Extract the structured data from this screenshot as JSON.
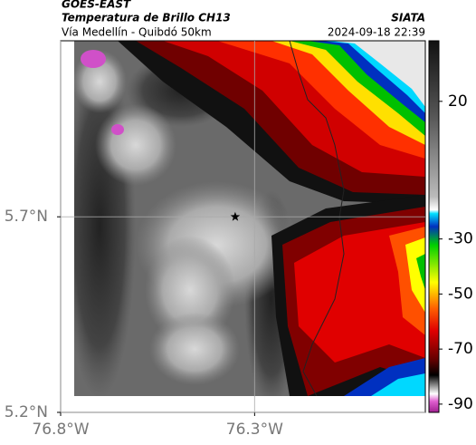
{
  "chart_data": {
    "type": "map",
    "title": "GOES-EAST",
    "subtitle": "Temperatura de Brillo CH13",
    "caption": "Vía Medellín - Quibdó 50km",
    "source": "SIATA",
    "timestamp": "2024-09-18 22:39",
    "xlim": [
      -76.8,
      -75.86
    ],
    "ylim": [
      5.2,
      6.15
    ],
    "xticks": [
      {
        "value": -76.8,
        "label": "76.8°W"
      },
      {
        "value": -76.3,
        "label": "76.3°W"
      }
    ],
    "yticks": [
      {
        "value": 5.2,
        "label": "5.2°N"
      },
      {
        "value": 5.7,
        "label": "5.7°N"
      }
    ],
    "grid": true,
    "marker": {
      "lon": -76.35,
      "lat": 5.7
    },
    "colorbar": {
      "lim": [
        -93,
        42
      ],
      "ticks": [
        20,
        -30,
        -50,
        -70,
        -90
      ]
    }
  }
}
